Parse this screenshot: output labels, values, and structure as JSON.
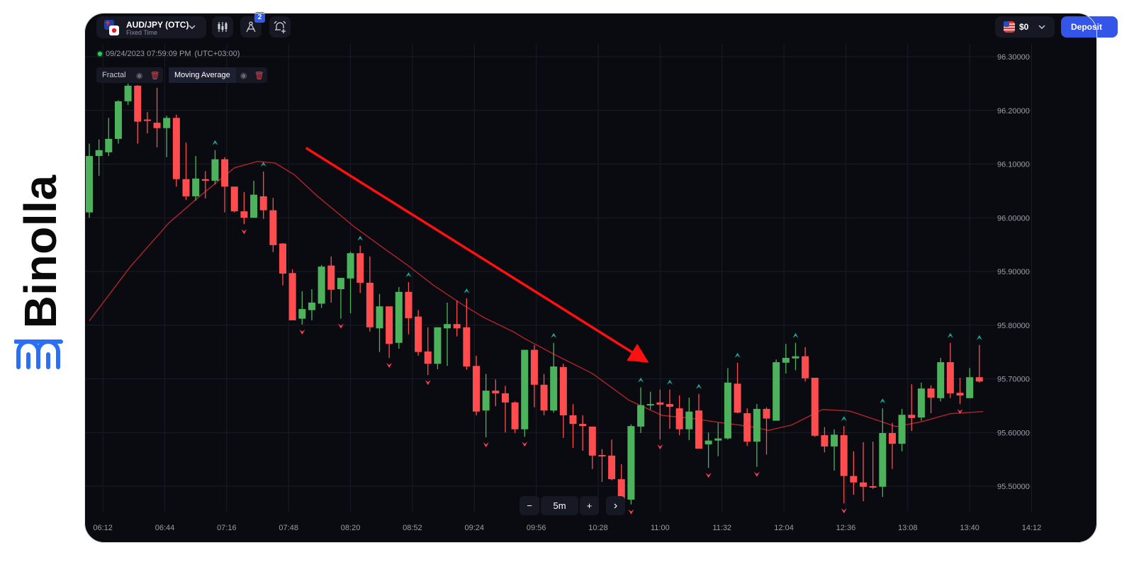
{
  "brand": {
    "name": "Binolla",
    "color": "#2b6ff5"
  },
  "header": {
    "pair": "AUD/JPY (OTC)",
    "pair_type": "Fixed Time",
    "drawing_badge": "2",
    "balance": "$0",
    "deposit_label": "Deposit",
    "icons": [
      "candles-icon",
      "compass-icon",
      "alarm-add-icon"
    ]
  },
  "datetime": "09/24/2023 07:59:09 PM",
  "timezone": "(UTC+03:00)",
  "indicators": [
    {
      "label": "Fractal"
    },
    {
      "label": "Moving Average"
    }
  ],
  "zoom": {
    "minus": "−",
    "timeframe": "5m",
    "plus": "+",
    "next": "›"
  },
  "colors": {
    "bull": "#4cb35c",
    "bear": "#ff4d4f",
    "ma": "#b3232c",
    "fractal_up": "#1ba89c",
    "fractal_down": "#ff4054",
    "trend_arrow": "#ff1010"
  },
  "chart_data": {
    "type": "candlestick",
    "interval": "5m",
    "y_ticks": [
      "96.30000",
      "96.20000",
      "96.10000",
      "96.00000",
      "95.90000",
      "95.80000",
      "95.70000",
      "95.60000",
      "95.50000"
    ],
    "x_ticks": [
      "06:12",
      "06:44",
      "07:16",
      "07:48",
      "08:20",
      "08:52",
      "09:24",
      "09:56",
      "10:28",
      "11:00",
      "11:32",
      "12:04",
      "12:36",
      "13:08",
      "13:40",
      "14:12"
    ],
    "ylim": [
      95.47,
      96.32
    ],
    "candles_fields": [
      "time",
      "open",
      "high",
      "low",
      "close"
    ],
    "candles": [
      [
        "06:05",
        96.01,
        96.138,
        96.0,
        96.115
      ],
      [
        "06:10",
        96.115,
        96.146,
        96.078,
        96.126
      ],
      [
        "06:15",
        96.122,
        96.186,
        96.115,
        96.147
      ],
      [
        "06:20",
        96.147,
        96.219,
        96.138,
        96.217
      ],
      [
        "06:25",
        96.217,
        96.25,
        96.21,
        96.246
      ],
      [
        "06:30",
        96.246,
        96.247,
        96.138,
        96.179
      ],
      [
        "06:35",
        96.183,
        96.197,
        96.157,
        96.181
      ],
      [
        "06:40",
        96.177,
        96.242,
        96.131,
        96.167
      ],
      [
        "06:45",
        96.167,
        96.19,
        96.113,
        96.186
      ],
      [
        "06:50",
        96.186,
        96.192,
        96.058,
        96.072
      ],
      [
        "06:55",
        96.072,
        96.14,
        96.033,
        96.04
      ],
      [
        "07:00",
        96.04,
        96.115,
        96.032,
        96.073
      ],
      [
        "07:05",
        96.072,
        96.087,
        96.036,
        96.069
      ],
      [
        "07:10",
        96.069,
        96.126,
        96.062,
        96.109
      ],
      [
        "07:15",
        96.109,
        96.113,
        96.01,
        96.058
      ],
      [
        "07:20",
        96.058,
        96.058,
        96.01,
        96.012
      ],
      [
        "07:25",
        96.012,
        96.048,
        95.988,
        96.0
      ],
      [
        "07:30",
        96.0,
        96.069,
        96.0,
        96.043
      ],
      [
        "07:35",
        96.04,
        96.086,
        95.998,
        96.014
      ],
      [
        "07:40",
        96.014,
        96.037,
        95.936,
        95.949
      ],
      [
        "07:45",
        95.952,
        95.953,
        95.874,
        95.896
      ],
      [
        "07:50",
        95.897,
        95.904,
        95.809,
        95.809
      ],
      [
        "07:55",
        95.812,
        95.863,
        95.801,
        95.83
      ],
      [
        "08:00",
        95.828,
        95.867,
        95.809,
        95.842
      ],
      [
        "08:05",
        95.84,
        95.912,
        95.832,
        95.909
      ],
      [
        "08:10",
        95.911,
        95.928,
        95.842,
        95.866
      ],
      [
        "08:15",
        95.867,
        95.888,
        95.812,
        95.888
      ],
      [
        "08:20",
        95.887,
        95.937,
        95.822,
        95.934
      ],
      [
        "08:25",
        95.934,
        95.948,
        95.86,
        95.879
      ],
      [
        "08:30",
        95.879,
        95.928,
        95.788,
        95.796
      ],
      [
        "08:35",
        95.794,
        95.858,
        95.75,
        95.835
      ],
      [
        "08:40",
        95.835,
        95.835,
        95.739,
        95.765
      ],
      [
        "08:45",
        95.767,
        95.871,
        95.756,
        95.862
      ],
      [
        "08:50",
        95.862,
        95.88,
        95.783,
        95.813
      ],
      [
        "08:55",
        95.816,
        95.828,
        95.743,
        95.75
      ],
      [
        "09:00",
        95.751,
        95.796,
        95.707,
        95.728
      ],
      [
        "09:05",
        95.728,
        95.796,
        95.718,
        95.796
      ],
      [
        "09:10",
        95.794,
        95.842,
        95.724,
        95.802
      ],
      [
        "09:15",
        95.802,
        95.846,
        95.779,
        95.794
      ],
      [
        "09:20",
        95.796,
        95.85,
        95.717,
        95.723
      ],
      [
        "09:25",
        95.724,
        95.743,
        95.632,
        95.639
      ],
      [
        "09:30",
        95.641,
        95.709,
        95.591,
        95.678
      ],
      [
        "09:35",
        95.678,
        95.699,
        95.649,
        95.673
      ],
      [
        "09:40",
        95.673,
        95.687,
        95.6,
        95.656
      ],
      [
        "09:45",
        95.656,
        95.658,
        95.599,
        95.606
      ],
      [
        "09:50",
        95.606,
        95.754,
        95.592,
        95.754
      ],
      [
        "09:55",
        95.754,
        95.763,
        95.647,
        95.689
      ],
      [
        "10:00",
        95.689,
        95.709,
        95.632,
        95.641
      ],
      [
        "10:05",
        95.641,
        95.767,
        95.637,
        95.723
      ],
      [
        "10:10",
        95.722,
        95.728,
        95.59,
        95.632
      ],
      [
        "10:15",
        95.632,
        95.653,
        95.571,
        95.616
      ],
      [
        "10:20",
        95.616,
        95.632,
        95.566,
        95.612
      ],
      [
        "10:25",
        95.611,
        95.611,
        95.532,
        95.557
      ],
      [
        "10:30",
        95.558,
        95.569,
        95.508,
        95.556
      ],
      [
        "10:35",
        95.557,
        95.587,
        95.511,
        95.513
      ],
      [
        "10:40",
        95.513,
        95.541,
        95.471,
        95.475
      ],
      [
        "10:45",
        95.475,
        95.615,
        95.466,
        95.612
      ],
      [
        "10:50",
        95.611,
        95.684,
        95.599,
        95.651
      ],
      [
        "10:55",
        95.651,
        95.676,
        95.643,
        95.653
      ],
      [
        "11:00",
        95.656,
        95.68,
        95.587,
        95.652
      ],
      [
        "11:05",
        95.653,
        95.68,
        95.607,
        95.648
      ],
      [
        "11:10",
        95.645,
        95.669,
        95.595,
        95.606
      ],
      [
        "11:15",
        95.606,
        95.665,
        95.586,
        95.639
      ],
      [
        "11:20",
        95.641,
        95.672,
        95.57,
        95.57
      ],
      [
        "11:25",
        95.578,
        95.6,
        95.534,
        95.585
      ],
      [
        "11:30",
        95.585,
        95.618,
        95.556,
        95.589
      ],
      [
        "11:35",
        95.589,
        95.72,
        95.587,
        95.693
      ],
      [
        "11:40",
        95.691,
        95.73,
        95.636,
        95.637
      ],
      [
        "11:45",
        95.636,
        95.645,
        95.575,
        95.583
      ],
      [
        "11:50",
        95.583,
        95.653,
        95.536,
        95.644
      ],
      [
        "11:55",
        95.644,
        95.647,
        95.559,
        95.626
      ],
      [
        "12:00",
        95.622,
        95.736,
        95.622,
        95.731
      ],
      [
        "12:05",
        95.73,
        95.765,
        95.71,
        95.739
      ],
      [
        "12:10",
        95.738,
        95.767,
        95.716,
        95.742
      ],
      [
        "12:15",
        95.742,
        95.759,
        95.695,
        95.701
      ],
      [
        "12:20",
        95.702,
        95.702,
        95.592,
        95.594
      ],
      [
        "12:25",
        95.595,
        95.61,
        95.563,
        95.574
      ],
      [
        "12:30",
        95.574,
        95.606,
        95.529,
        95.596
      ],
      [
        "12:35",
        95.595,
        95.612,
        95.468,
        95.519
      ],
      [
        "12:40",
        95.519,
        95.565,
        95.484,
        95.507
      ],
      [
        "12:45",
        95.507,
        95.582,
        95.472,
        95.499
      ],
      [
        "12:50",
        95.5,
        95.583,
        95.495,
        95.499
      ],
      [
        "12:55",
        95.499,
        95.645,
        95.48,
        95.599
      ],
      [
        "13:00",
        95.599,
        95.618,
        95.532,
        95.579
      ],
      [
        "13:05",
        95.579,
        95.644,
        95.565,
        95.633
      ],
      [
        "13:10",
        95.633,
        95.69,
        95.603,
        95.627
      ],
      [
        "13:15",
        95.628,
        95.693,
        95.622,
        95.682
      ],
      [
        "13:20",
        95.682,
        95.688,
        95.636,
        95.665
      ],
      [
        "13:25",
        95.664,
        95.739,
        95.658,
        95.731
      ],
      [
        "13:30",
        95.731,
        95.767,
        95.664,
        95.673
      ],
      [
        "13:35",
        95.674,
        95.702,
        95.653,
        95.669
      ],
      [
        "13:40",
        95.664,
        95.72,
        95.664,
        95.703
      ],
      [
        "13:45",
        95.703,
        95.763,
        95.693,
        95.695
      ]
    ],
    "moving_average": [
      [
        "06:05",
        95.808
      ],
      [
        "06:26",
        95.908
      ],
      [
        "06:46",
        95.99
      ],
      [
        "07:02",
        96.04
      ],
      [
        "07:20",
        96.093
      ],
      [
        "07:32",
        96.105
      ],
      [
        "07:41",
        96.102
      ],
      [
        "07:51",
        96.08
      ],
      [
        "08:02",
        96.043
      ],
      [
        "08:22",
        95.983
      ],
      [
        "08:38",
        95.941
      ],
      [
        "08:49",
        95.913
      ],
      [
        "09:03",
        95.874
      ],
      [
        "09:18",
        95.838
      ],
      [
        "09:29",
        95.814
      ],
      [
        "09:44",
        95.788
      ],
      [
        "09:50",
        95.775
      ],
      [
        "10:05",
        95.746
      ],
      [
        "10:25",
        95.71
      ],
      [
        "10:44",
        95.66
      ],
      [
        "11:01",
        95.632
      ],
      [
        "11:15",
        95.627
      ],
      [
        "11:30",
        95.619
      ],
      [
        "11:47",
        95.611
      ],
      [
        "11:56",
        95.604
      ],
      [
        "12:08",
        95.614
      ],
      [
        "12:24",
        95.643
      ],
      [
        "12:38",
        95.64
      ],
      [
        "13:02",
        95.611
      ],
      [
        "13:15",
        95.62
      ],
      [
        "13:30",
        95.635
      ],
      [
        "13:47",
        95.639
      ]
    ],
    "fractals_up": [
      "06:25",
      "07:10",
      "07:35",
      "08:25",
      "08:50",
      "09:20",
      "10:05",
      "10:50",
      "11:05",
      "11:20",
      "11:40",
      "12:10",
      "12:35",
      "12:55",
      "13:30",
      "13:45"
    ],
    "fractals_down": [
      "07:25",
      "07:55",
      "08:15",
      "08:40",
      "09:00",
      "09:30",
      "09:50",
      "10:45",
      "11:00",
      "11:25",
      "11:50",
      "12:35",
      "13:35"
    ],
    "annotation": {
      "type": "arrow",
      "from": [
        "07:57",
        96.13
      ],
      "to": [
        "10:52",
        95.735
      ]
    }
  }
}
